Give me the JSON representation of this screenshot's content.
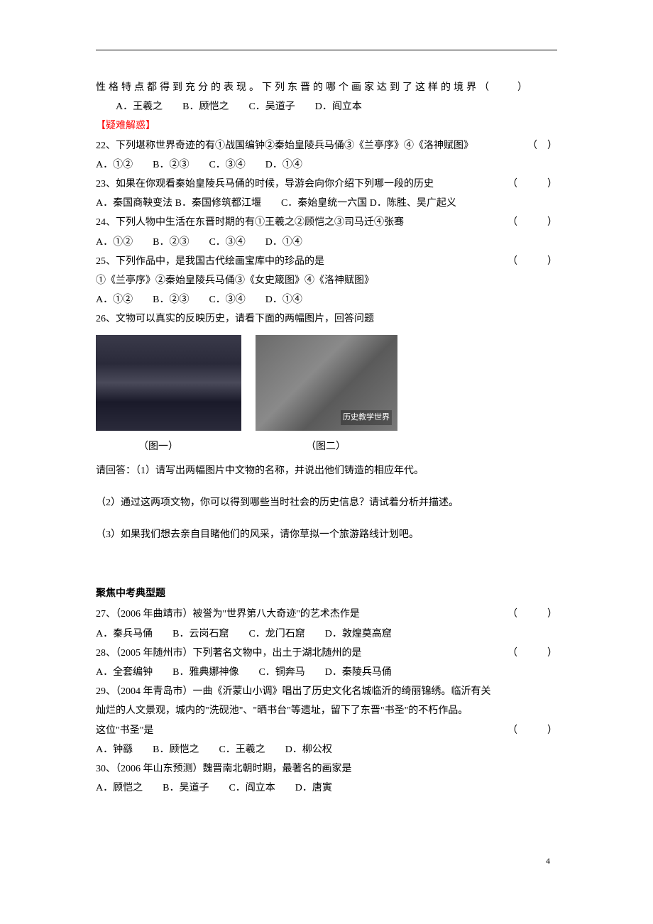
{
  "line1": "性格特点都得到充分的表现。下列东晋的哪个画家达到了这样的境界（　　）",
  "line2_options": "A．王羲之　　B．顾恺之　　C．吴道子　　D．阎立本",
  "section_header": "【疑难解惑】",
  "q22": {
    "text": "22、下列堪称世界奇迹的有①战国编钟②秦始皇陵兵马俑③《兰亭序》④《洛神赋图》",
    "paren": "（　）"
  },
  "q22_options": "A．①②　　B．②③　　C．③④　　D．①④",
  "q23": {
    "text": "23、如果在你观看秦始皇陵兵马俑的时候，导游会向你介绍下列哪一段的历史",
    "paren": "（　　　）"
  },
  "q23_options": "A．秦国商鞅变法 B．秦国修筑都江堰　　C．秦始皇统一六国 D．陈胜、吴广起义",
  "q24": {
    "text": "24、下列人物中生活在东晋时期的有①王羲之②顾恺之③司马迁④张骞",
    "paren": "（　　　）"
  },
  "q24_options": "A．①②　　B．②③　　C．③④　　D．①④",
  "q25": {
    "text": "25、下列作品中，是我国古代绘画宝库中的珍品的是",
    "paren": "（　　　）"
  },
  "q25_items": "①《兰亭序》②秦始皇陵兵马俑③《女史箴图》④《洛神赋图》",
  "q25_options": "A．①②　　B．②③　　C．③④　　D．①④",
  "q26_intro": "26、文物可以真实的反映历史，请看下面的两幅图片，回答问题",
  "img2_overlay": "历史教学世界",
  "caption1": "（图一）",
  "caption2": "（图二）",
  "q26_sub1": "请回答：（1）请写出两幅图片中文物的名称，并说出他们铸造的相应年代。",
  "q26_sub2": "（2）通过这两项文物，你可以得到哪些当时社会的历史信息？请试着分析并描述。",
  "q26_sub3": "（3）如果我们想去亲自目睹他们的风采，请你草拟一个旅游路线计划吧。",
  "focus_heading": "聚焦中考典型题",
  "q27": {
    "text": "27、（2006 年曲靖市）被誉为\"世界第八大奇迹\"的艺术杰作是",
    "paren": "（　　　）"
  },
  "q27_options": "A．秦兵马俑　　B．云岗石窟　　C．龙门石窟　　D．敦煌莫高窟",
  "q28": {
    "text": "28、（2005 年随州市）下列著名文物中，出土于湖北随州的是",
    "paren": "（　　　）"
  },
  "q28_options": "A．全套编钟　　B．雅典娜神像　　C．铜奔马　　D．秦陵兵马俑",
  "q29_line1": "29、（2004 年青岛市）一曲《沂蒙山小调》唱出了历史文化名城临沂的绮丽锦绣。临沂有关",
  "q29_line2": "灿烂的人文景观，城内的\"洗砚池\"、\"晒书台\"等遗址，留下了东晋\"书圣\"的不朽作品。",
  "q29_line3": {
    "text": "这位\"书圣\"是",
    "paren": "（　　　）"
  },
  "q29_options": "A．钟繇　　B．顾恺之　　C．王羲之　　D．柳公权",
  "q30": "30、（2006 年山东预测）魏晋南北朝时期，最著名的画家是",
  "q30_options": "A．顾恺之　　B．吴道子　　C．阎立本　　D．唐寅",
  "page_number": "4",
  "colors": {
    "text": "#000000",
    "header": "#ff0000",
    "background": "#ffffff"
  }
}
